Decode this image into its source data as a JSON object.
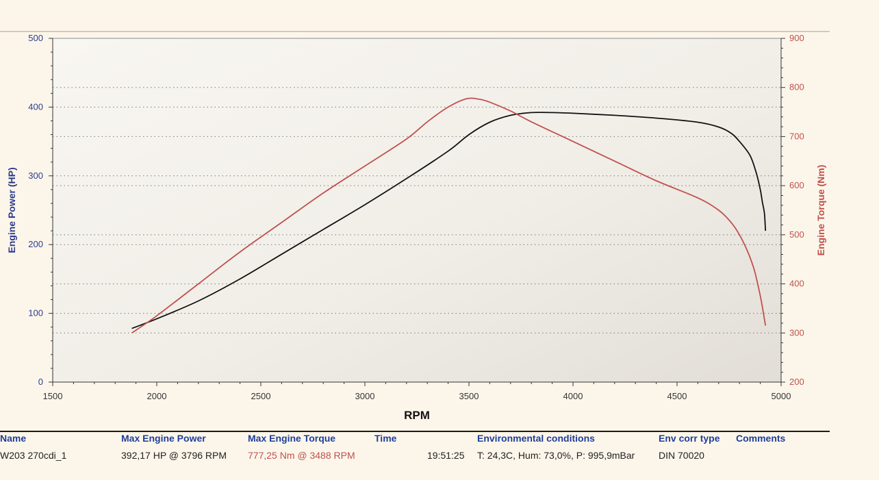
{
  "chart_data": {
    "type": "line",
    "title": "",
    "xlabel": "RPM",
    "ylabel_left": "Engine Power (HP)",
    "ylabel_right": "Engine Torque (Nm)",
    "xlim": [
      1500,
      5000
    ],
    "ylim_left": [
      0,
      500
    ],
    "ylim_right": [
      200,
      900
    ],
    "x_ticks": [
      "1500",
      "2000",
      "2500",
      "3000",
      "3500",
      "4000",
      "4500",
      "5000"
    ],
    "y_ticks_left": [
      "0",
      "100",
      "200",
      "300",
      "400",
      "500"
    ],
    "y_ticks_right": [
      "200",
      "300",
      "400",
      "500",
      "600",
      "700",
      "800",
      "900"
    ],
    "grid": "dotted horizontal",
    "series": [
      {
        "name": "Max Engine Power",
        "axis": "left",
        "color": "#111111",
        "x": [
          1880,
          2000,
          2200,
          2400,
          2600,
          2800,
          3000,
          3200,
          3400,
          3500,
          3600,
          3700,
          3800,
          3900,
          4000,
          4200,
          4400,
          4600,
          4700,
          4760,
          4800,
          4850,
          4880,
          4900,
          4910,
          4920,
          4925
        ],
        "y": [
          78,
          92,
          118,
          150,
          186,
          222,
          258,
          296,
          336,
          360,
          378,
          388,
          392,
          392,
          391,
          388,
          384,
          378,
          371,
          362,
          350,
          330,
          305,
          280,
          262,
          245,
          220
        ]
      },
      {
        "name": "Max Engine Torque",
        "axis": "right",
        "color": "#c0504d",
        "x": [
          1880,
          2000,
          2200,
          2400,
          2600,
          2800,
          3000,
          3200,
          3300,
          3400,
          3488,
          3550,
          3600,
          3700,
          3800,
          4000,
          4200,
          4400,
          4600,
          4700,
          4760,
          4800,
          4840,
          4870,
          4890,
          4905,
          4915,
          4925
        ],
        "y": [
          300,
          335,
          400,
          465,
          525,
          585,
          640,
          695,
          730,
          760,
          777,
          776,
          770,
          752,
          730,
          690,
          650,
          610,
          575,
          550,
          525,
          500,
          465,
          430,
          395,
          365,
          340,
          315
        ]
      }
    ]
  },
  "footer": {
    "headers": {
      "name": "Name",
      "power": "Max Engine Power",
      "torque": "Max Engine Torque",
      "time": "Time",
      "env": "Environmental conditions",
      "corr": "Env corr type",
      "comments": "Comments"
    },
    "row": {
      "name": "W203 270cdi_1",
      "power": "392,17 HP @ 3796 RPM",
      "torque": "777,25 Nm @ 3488 RPM",
      "time": "19:51:25",
      "env": "T: 24,3C, Hum: 73,0%, P: 995,9mBar",
      "corr": "DIN 70020",
      "comments": ""
    }
  },
  "colors": {
    "power": "#111111",
    "torque": "#c0504d",
    "header_text": "#1f3d9a",
    "left_axis": "#2d3a8c",
    "right_axis": "#c0504d"
  }
}
